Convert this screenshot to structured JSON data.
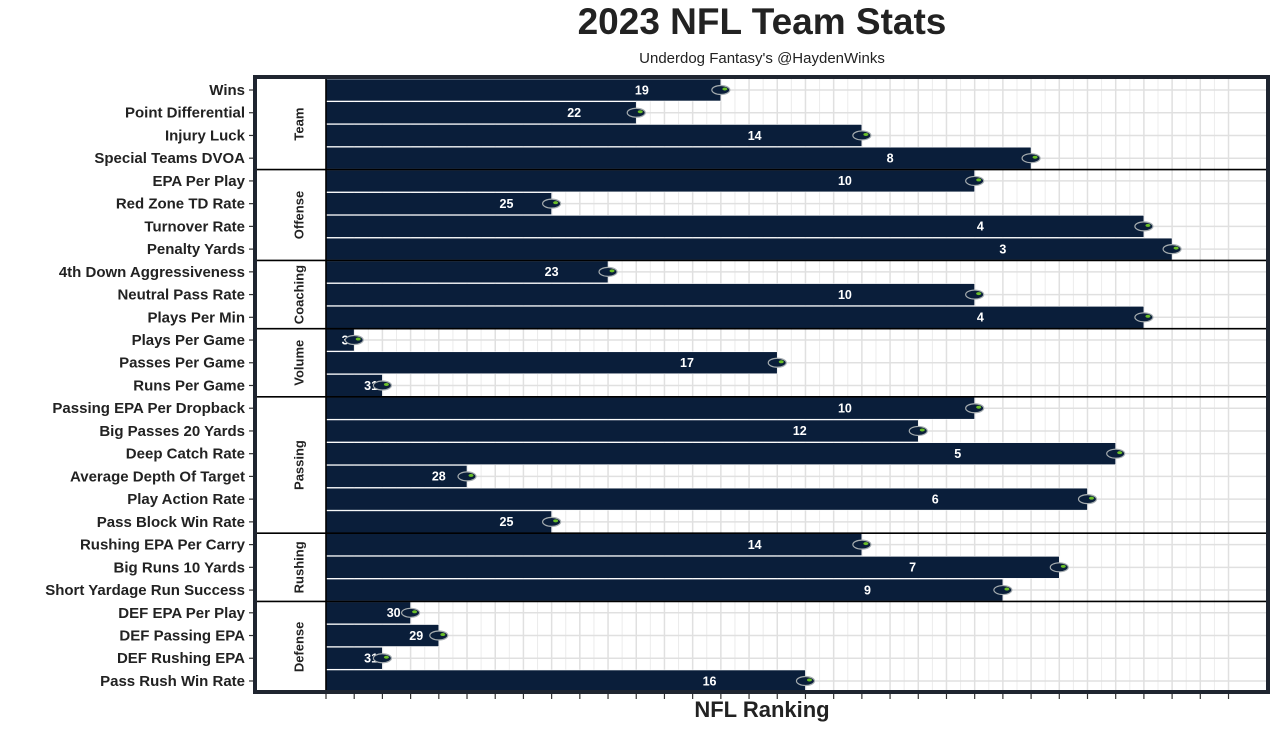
{
  "chart_data": {
    "type": "bar",
    "title": "2023 NFL Team Stats",
    "subtitle": "Underdog Fantasy's @HaydenWinks",
    "x_label": "NFL Ranking",
    "color": "#0a1e3a",
    "xlim": [
      33,
      -0.4
    ],
    "xticks": [
      33,
      32,
      31,
      30,
      29,
      28,
      27,
      26,
      25,
      24,
      23,
      22,
      21,
      20,
      19,
      18,
      17,
      16,
      15,
      14,
      13,
      12,
      11,
      10,
      9,
      8,
      7,
      6,
      5,
      4,
      3,
      2,
      1
    ],
    "grid": true,
    "facets": [
      {
        "name": "Team",
        "categories": [
          "Wins",
          "Point Differential",
          "Injury Luck",
          "Special Teams DVOA"
        ],
        "values": [
          19,
          22,
          14,
          8
        ]
      },
      {
        "name": "Offense",
        "categories": [
          "EPA Per Play",
          "Red Zone TD Rate",
          "Turnover Rate",
          "Penalty Yards"
        ],
        "values": [
          10,
          25,
          4,
          3
        ]
      },
      {
        "name": "Coaching",
        "categories": [
          "4th Down Aggressiveness",
          "Neutral Pass Rate",
          "Plays Per Min"
        ],
        "values": [
          23,
          10,
          4
        ]
      },
      {
        "name": "Volume",
        "categories": [
          "Plays Per Game",
          "Passes Per Game",
          "Runs Per Game"
        ],
        "values": [
          32,
          17,
          31
        ]
      },
      {
        "name": "Passing",
        "categories": [
          "Passing EPA Per Dropback",
          "Big Passes 20 Yards",
          "Deep Catch Rate",
          "Average Depth Of Target",
          "Play Action Rate",
          "Pass Block Win Rate"
        ],
        "values": [
          10,
          12,
          5,
          28,
          6,
          25
        ]
      },
      {
        "name": "Rushing",
        "categories": [
          "Rushing EPA Per Carry",
          "Big Runs 10 Yards",
          "Short Yardage Run Success"
        ],
        "values": [
          14,
          7,
          9
        ]
      },
      {
        "name": "Defense",
        "categories": [
          "DEF EPA Per Play",
          "DEF Passing EPA",
          "DEF Rushing EPA",
          "Pass Rush Win Rate"
        ],
        "values": [
          30,
          29,
          31,
          16
        ]
      }
    ]
  }
}
